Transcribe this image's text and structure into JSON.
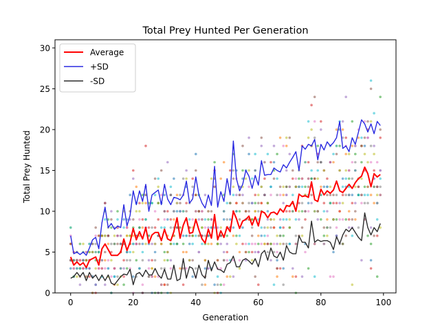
{
  "chart_data": {
    "type": "line",
    "title": "Total Prey Hunted Per Generation",
    "xlabel": "Generation",
    "ylabel": "Total Prey Hunted",
    "xlim": [
      -5,
      104
    ],
    "ylim": [
      0,
      31
    ],
    "xticks": [
      0,
      20,
      40,
      60,
      80,
      100
    ],
    "yticks": [
      0,
      5,
      10,
      15,
      20,
      25,
      30
    ],
    "grid": false,
    "legend_position": "top-left",
    "x": [
      0,
      1,
      2,
      3,
      4,
      5,
      6,
      7,
      8,
      9,
      10,
      11,
      12,
      13,
      14,
      15,
      16,
      17,
      18,
      19,
      20,
      21,
      22,
      23,
      24,
      25,
      26,
      27,
      28,
      29,
      30,
      31,
      32,
      33,
      34,
      35,
      36,
      37,
      38,
      39,
      40,
      41,
      42,
      43,
      44,
      45,
      46,
      47,
      48,
      49,
      50,
      51,
      52,
      53,
      54,
      55,
      56,
      57,
      58,
      59,
      60,
      61,
      62,
      63,
      64,
      65,
      66,
      67,
      68,
      69,
      70,
      71,
      72,
      73,
      74,
      75,
      76,
      77,
      78,
      79,
      80,
      81,
      82,
      83,
      84,
      85,
      86,
      87,
      88,
      89,
      90,
      91,
      92,
      93,
      94,
      95,
      96,
      97,
      98,
      99
    ],
    "series": [
      {
        "name": "Average",
        "color": "#ff0000",
        "width": 2,
        "values": [
          4.4,
          3.4,
          3.8,
          3.4,
          3.7,
          3.1,
          4.0,
          4.2,
          4.4,
          3.4,
          5.4,
          6.0,
          5.3,
          4.6,
          4.6,
          4.6,
          5.0,
          6.6,
          5.2,
          6.2,
          7.9,
          6.5,
          7.5,
          6.6,
          8.0,
          6.1,
          7.1,
          7.4,
          7.4,
          6.4,
          7.8,
          6.6,
          6.4,
          7.5,
          9.2,
          6.7,
          8.3,
          9.2,
          7.3,
          7.4,
          9.0,
          7.7,
          6.6,
          6.1,
          7.8,
          6.7,
          9.6,
          6.5,
          7.6,
          6.8,
          8.1,
          7.5,
          10.0,
          9.1,
          7.9,
          8.8,
          9.0,
          9.4,
          8.3,
          9.3,
          8.2,
          10.0,
          9.8,
          9.2,
          9.8,
          9.9,
          9.6,
          10.3,
          9.9,
          10.7,
          10.6,
          11.2,
          10.0,
          12.1,
          11.8,
          11.9,
          11.7,
          13.6,
          11.4,
          11.2,
          12.7,
          12.0,
          12.5,
          12.2,
          12.6,
          13.7,
          12.5,
          12.3,
          12.8,
          13.3,
          12.8,
          13.5,
          14.0,
          14.3,
          15.4,
          14.6,
          13.0,
          14.6,
          14.2,
          14.5
        ]
      },
      {
        "name": "+SD",
        "color": "#2828e0",
        "width": 1.4,
        "values": [
          7.0,
          4.8,
          5.0,
          4.7,
          5.0,
          4.6,
          5.5,
          6.5,
          6.8,
          5.4,
          8.6,
          10.5,
          8.0,
          8.5,
          7.8,
          8.2,
          8.0,
          10.8,
          8.2,
          9.5,
          12.5,
          10.8,
          12.5,
          11.2,
          13.3,
          10.0,
          12.0,
          12.3,
          12.6,
          10.8,
          13.3,
          11.5,
          10.8,
          11.7,
          11.6,
          11.4,
          12.0,
          13.7,
          11.0,
          11.5,
          14.2,
          12.0,
          11.0,
          10.4,
          12.0,
          10.7,
          15.5,
          10.5,
          12.4,
          11.2,
          14.0,
          12.0,
          18.6,
          14.0,
          12.5,
          13.3,
          15.0,
          14.3,
          12.8,
          14.4,
          13.2,
          16.2,
          14.4,
          14.5,
          14.5,
          15.3,
          15.0,
          14.8,
          15.7,
          15.3,
          16.0,
          16.6,
          17.3,
          15.0,
          18.0,
          17.6,
          18.2,
          18.0,
          18.8,
          16.3,
          18.2,
          17.5,
          18.5,
          18.0,
          18.4,
          19.0,
          21.0,
          17.7,
          18.0,
          17.3,
          19.0,
          18.2,
          19.7,
          21.2,
          20.7,
          19.7,
          20.7,
          19.5,
          21.0,
          20.5
        ]
      },
      {
        "name": "-SD",
        "color": "#2b2b2b",
        "width": 1.4,
        "values": [
          1.8,
          2.0,
          2.5,
          2.0,
          2.5,
          1.5,
          2.5,
          1.8,
          2.2,
          1.5,
          2.2,
          1.5,
          2.2,
          1.2,
          1.0,
          1.5,
          2.0,
          2.3,
          2.2,
          2.9,
          1.0,
          2.3,
          2.5,
          2.0,
          2.8,
          2.2,
          2.2,
          3.0,
          2.2,
          1.8,
          2.9,
          1.7,
          1.7,
          3.4,
          1.5,
          1.7,
          4.2,
          1.8,
          3.2,
          3.0,
          1.8,
          3.4,
          2.2,
          1.8,
          4.0,
          2.7,
          3.8,
          2.9,
          2.8,
          2.5,
          3.5,
          3.7,
          4.5,
          3.2,
          3.2,
          4.0,
          4.2,
          3.9,
          3.5,
          4.2,
          3.2,
          4.8,
          5.2,
          4.0,
          5.5,
          4.5,
          4.3,
          5.0,
          4.0,
          5.8,
          5.0,
          4.8,
          4.8,
          7.0,
          6.2,
          6.2,
          5.5,
          8.8,
          6.2,
          6.5,
          6.3,
          6.4,
          6.4,
          6.2,
          5.3,
          6.9,
          6.0,
          7.1,
          7.8,
          7.5,
          8.0,
          7.4,
          6.8,
          6.4,
          9.8,
          8.0,
          7.1,
          8.0,
          7.5,
          8.5
        ]
      }
    ]
  }
}
